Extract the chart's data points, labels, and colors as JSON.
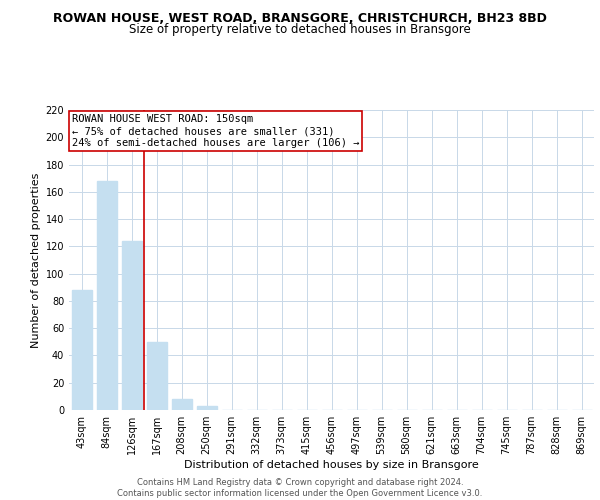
{
  "title": "ROWAN HOUSE, WEST ROAD, BRANSGORE, CHRISTCHURCH, BH23 8BD",
  "subtitle": "Size of property relative to detached houses in Bransgore",
  "xlabel": "Distribution of detached houses by size in Bransgore",
  "ylabel": "Number of detached properties",
  "bar_labels": [
    "43sqm",
    "84sqm",
    "126sqm",
    "167sqm",
    "208sqm",
    "250sqm",
    "291sqm",
    "332sqm",
    "373sqm",
    "415sqm",
    "456sqm",
    "497sqm",
    "539sqm",
    "580sqm",
    "621sqm",
    "663sqm",
    "704sqm",
    "745sqm",
    "787sqm",
    "828sqm",
    "869sqm"
  ],
  "bar_values": [
    88,
    168,
    124,
    50,
    8,
    3,
    0,
    0,
    0,
    0,
    0,
    0,
    0,
    0,
    0,
    0,
    0,
    0,
    0,
    0,
    0
  ],
  "bar_color": "#c5dff0",
  "annotation_box_text": "ROWAN HOUSE WEST ROAD: 150sqm\n← 75% of detached houses are smaller (331)\n24% of semi-detached houses are larger (106) →",
  "vline_x": 2.5,
  "ylim": [
    0,
    220
  ],
  "yticks": [
    0,
    20,
    40,
    60,
    80,
    100,
    120,
    140,
    160,
    180,
    200,
    220
  ],
  "footnote_line1": "Contains HM Land Registry data © Crown copyright and database right 2024.",
  "footnote_line2": "Contains public sector information licensed under the Open Government Licence v3.0.",
  "background_color": "#ffffff",
  "grid_color": "#c8d8e8",
  "vline_color": "#cc0000",
  "annotation_box_edge_color": "#cc0000",
  "title_fontsize": 9,
  "subtitle_fontsize": 8.5,
  "xlabel_fontsize": 8,
  "ylabel_fontsize": 8,
  "tick_fontsize": 7,
  "annotation_fontsize": 7.5,
  "footnote_fontsize": 6
}
